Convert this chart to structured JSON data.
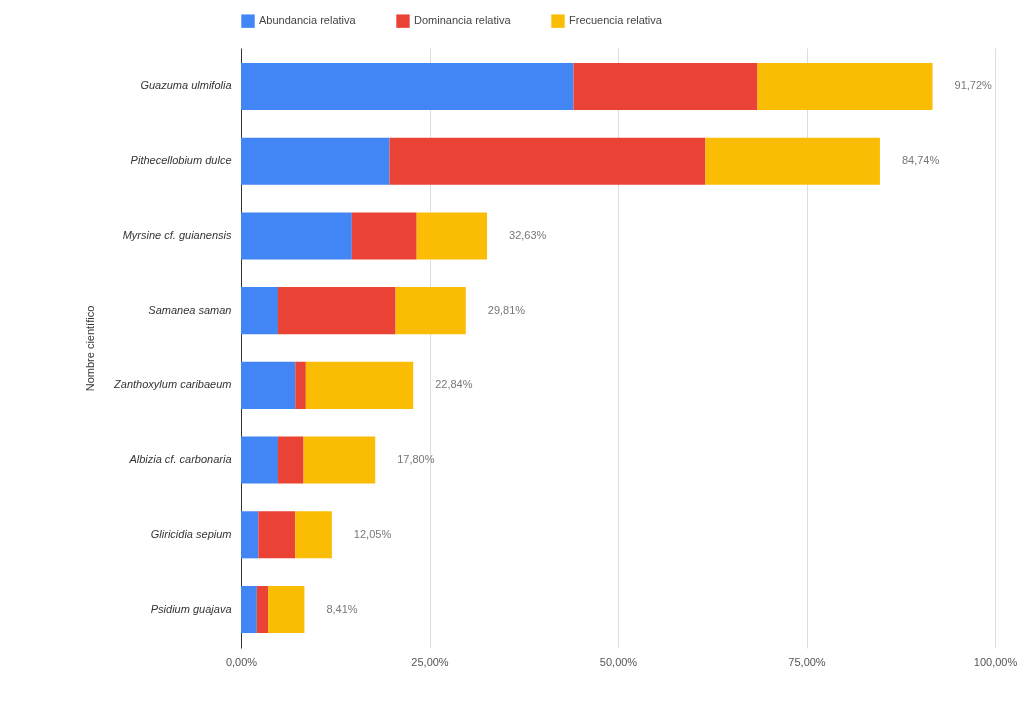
{
  "chart_data": {
    "type": "bar",
    "orientation": "horizontal",
    "stacked": true,
    "ylabel": "Nombre científico",
    "categories": [
      "Guazuma ulmifolia",
      "Pithecellobium dulce",
      "Myrsine cf. guianensis",
      "Samanea saman",
      "Zanthoxylum caribaeum",
      "Albizia cf. carbonaria",
      "Gliricidia sepium",
      "Psidium guajava"
    ],
    "series": [
      {
        "name": "Abundancia relativa",
        "color": "#4285f4",
        "values": [
          44.1,
          19.7,
          14.7,
          4.9,
          7.2,
          4.9,
          2.3,
          2.1
        ]
      },
      {
        "name": "Dominancia relativa",
        "color": "#ea4335",
        "values": [
          24.4,
          41.9,
          8.6,
          15.6,
          1.4,
          3.4,
          4.9,
          1.5
        ]
      },
      {
        "name": "Frecuencia relativa",
        "color": "#fbbc04",
        "values": [
          23.22,
          23.14,
          9.33,
          9.31,
          14.24,
          9.5,
          4.85,
          4.81
        ]
      }
    ],
    "totals": [
      "91,72%",
      "84,74%",
      "32,63%",
      "29,81%",
      "22,84%",
      "17,80%",
      "12,05%",
      "8,41%"
    ],
    "xlim": [
      0,
      100
    ],
    "xticks": [
      {
        "value": 0,
        "label": "0,00%"
      },
      {
        "value": 25,
        "label": "25,00%"
      },
      {
        "value": 50,
        "label": "50,00%"
      },
      {
        "value": 75,
        "label": "75,00%"
      },
      {
        "value": 100,
        "label": "100,00%"
      }
    ],
    "grid": "x",
    "legend": "top"
  }
}
